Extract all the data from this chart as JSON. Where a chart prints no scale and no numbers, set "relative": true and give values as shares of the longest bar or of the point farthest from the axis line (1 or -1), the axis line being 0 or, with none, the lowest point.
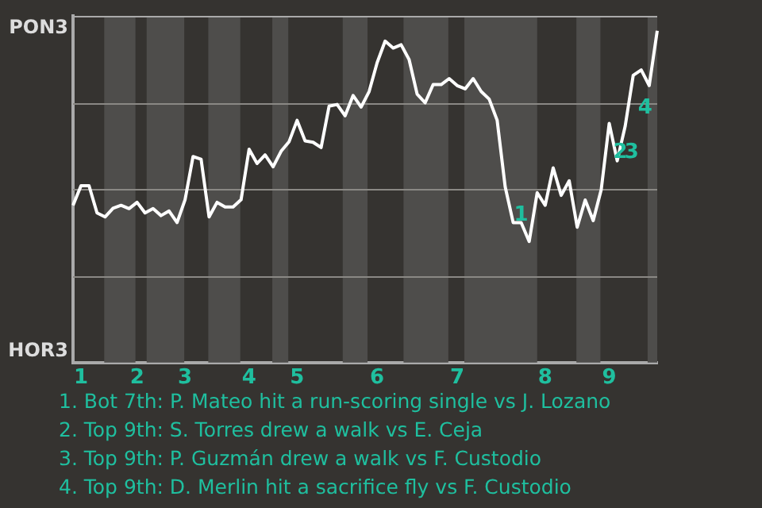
{
  "chart_data": {
    "type": "line",
    "relative": true,
    "categories": [
      null,
      "1",
      null,
      null,
      null,
      null,
      null,
      null,
      "2",
      null,
      null,
      null,
      null,
      null,
      "3",
      null,
      null,
      null,
      null,
      null,
      null,
      null,
      "4",
      null,
      null,
      null,
      null,
      null,
      "5",
      null,
      null,
      null,
      null,
      null,
      null,
      null,
      null,
      null,
      "6",
      null,
      null,
      null,
      null,
      null,
      null,
      null,
      null,
      null,
      "7",
      null,
      null,
      null,
      null,
      null,
      null,
      null,
      null,
      null,
      null,
      "8",
      null,
      null,
      null,
      null,
      null,
      null,
      null,
      "9",
      null,
      null,
      null,
      null,
      null,
      null
    ],
    "series": [
      {
        "color": "#ffffff",
        "values": [
          0.474,
          0.533,
          0.533,
          0.451,
          0.439,
          0.465,
          0.474,
          0.464,
          0.483,
          0.451,
          0.464,
          0.443,
          0.457,
          0.422,
          0.491,
          0.621,
          0.613,
          0.439,
          0.483,
          0.469,
          0.469,
          0.491,
          0.643,
          0.6,
          0.626,
          0.59,
          0.637,
          0.666,
          0.73,
          0.668,
          0.664,
          0.648,
          0.773,
          0.778,
          0.744,
          0.805,
          0.77,
          0.817,
          0.904,
          0.969,
          0.948,
          0.958,
          0.913,
          0.809,
          0.783,
          0.838,
          0.838,
          0.856,
          0.835,
          0.825,
          0.856,
          0.817,
          0.794,
          0.73,
          0.53,
          0.422,
          0.422,
          0.365,
          0.512,
          0.474,
          0.587,
          0.504,
          0.548,
          0.408,
          0.49,
          0.428,
          0.521,
          0.721,
          0.608,
          0.713,
          0.866,
          0.882,
          0.835,
          1
        ]
      }
    ],
    "grid": false,
    "legend": false,
    "marker": "none",
    "line_style": "solid",
    "ref_lines": [
      {
        "axis": "y",
        "value": 0.261,
        "color": "#8a8884"
      },
      {
        "axis": "y",
        "value": 0.522,
        "color": "#8a8884"
      },
      {
        "axis": "y",
        "value": 0.784,
        "color": "#8a8884"
      }
    ],
    "annotations": [
      "PON3",
      "HOR3",
      "1",
      "2",
      "3",
      "4",
      "1. Bot 7th: P. Mateo hit a run-scoring single vs J. Lozano",
      "2. Top 9th: S. Torres drew a walk vs E. Ceja",
      "3. Top 9th: P. Guzmán drew a walk vs F. Custodio",
      "4. Top 9th: D. Merlin hit a sacrifice fly vs F. Custodio"
    ]
  }
}
